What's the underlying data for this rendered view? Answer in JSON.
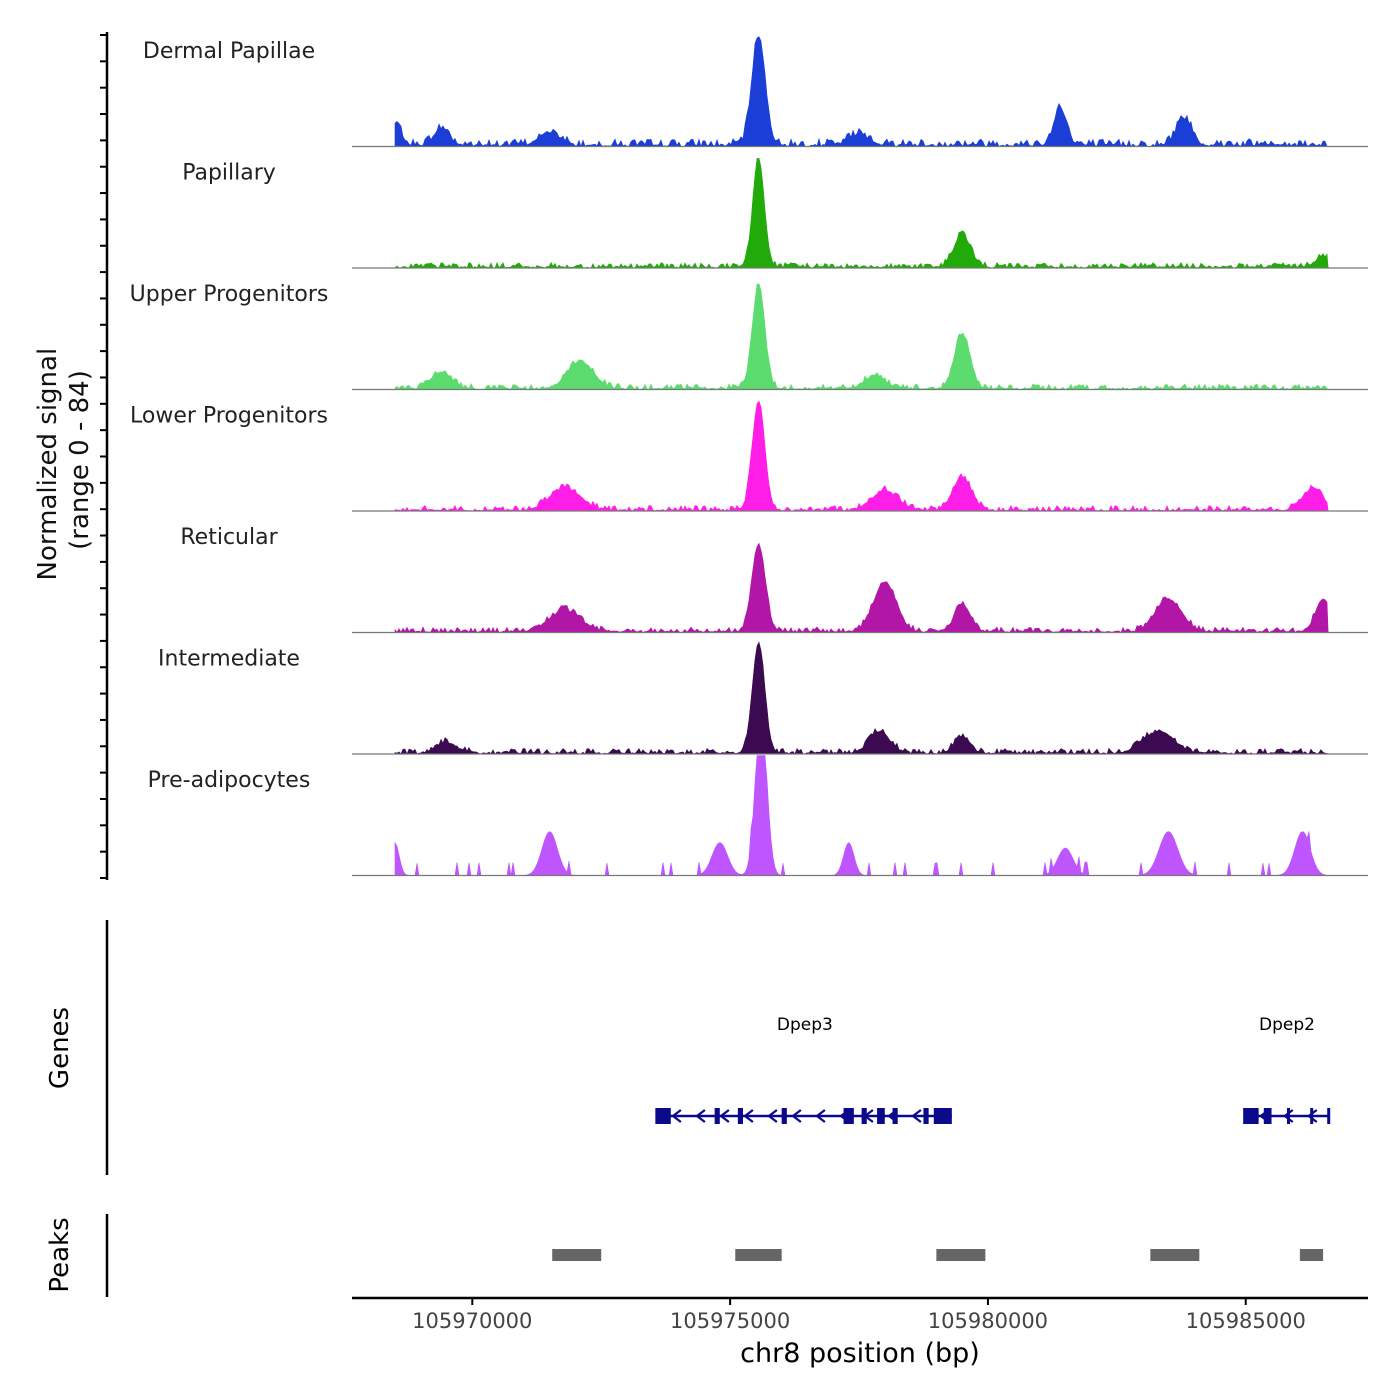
{
  "chart_data": {
    "type": "area",
    "title": "",
    "ylabel": "Normalized signal\n(range 0 - 84)",
    "ylim": [
      0,
      84
    ],
    "xlabel": "chr8 position (bp)",
    "xlim": [
      105967667,
      105987371
    ],
    "x_ticks": [
      105970000,
      105975000,
      105980000,
      105985000
    ],
    "x_tick_labels": [
      "105970000",
      "105975000",
      "105980000",
      "105985000"
    ],
    "tracks": [
      {
        "name": "Dermal Papillae",
        "color": "#1b3fd6",
        "peaks": [
          [
            105975550,
            1.0,
            130
          ],
          [
            105981400,
            0.35,
            120
          ],
          [
            105983800,
            0.25,
            150
          ],
          [
            105968500,
            0.2,
            120
          ],
          [
            105969400,
            0.15,
            150
          ],
          [
            105971500,
            0.12,
            200
          ],
          [
            105977500,
            0.1,
            200
          ]
        ]
      },
      {
        "name": "Papillary",
        "color": "#22aa0a",
        "peaks": [
          [
            105975550,
            1.0,
            110
          ],
          [
            105979500,
            0.3,
            160
          ],
          [
            105986500,
            0.1,
            150
          ]
        ]
      },
      {
        "name": "Upper Progenitors",
        "color": "#5cdb6e",
        "peaks": [
          [
            105975550,
            0.95,
            120
          ],
          [
            105979500,
            0.5,
            150
          ],
          [
            105972100,
            0.25,
            250
          ],
          [
            105969400,
            0.15,
            200
          ],
          [
            105977800,
            0.12,
            200
          ]
        ]
      },
      {
        "name": "Lower Progenitors",
        "color": "#ff1ee8",
        "peaks": [
          [
            105975550,
            1.0,
            120
          ],
          [
            105979500,
            0.3,
            180
          ],
          [
            105971800,
            0.2,
            300
          ],
          [
            105978000,
            0.18,
            250
          ],
          [
            105986300,
            0.2,
            200
          ]
        ]
      },
      {
        "name": "Reticular",
        "color": "#b216a6",
        "peaks": [
          [
            105975550,
            0.8,
            130
          ],
          [
            105978000,
            0.45,
            220
          ],
          [
            105979500,
            0.25,
            150
          ],
          [
            105983500,
            0.3,
            250
          ],
          [
            105986500,
            0.3,
            150
          ],
          [
            105971800,
            0.2,
            300
          ]
        ]
      },
      {
        "name": "Intermediate",
        "color": "#3c0a50",
        "peaks": [
          [
            105975550,
            1.0,
            120
          ],
          [
            105977900,
            0.2,
            200
          ],
          [
            105979500,
            0.15,
            150
          ],
          [
            105983300,
            0.2,
            300
          ],
          [
            105969500,
            0.1,
            200
          ]
        ]
      },
      {
        "name": "Pre-adipocytes",
        "color": "#bf55ff",
        "peaks": [
          [
            105975600,
            1.5,
            110
          ],
          [
            105971500,
            0.4,
            150
          ],
          [
            105983500,
            0.4,
            180
          ],
          [
            105986100,
            0.4,
            150
          ],
          [
            105974800,
            0.3,
            150
          ],
          [
            105981500,
            0.25,
            150
          ],
          [
            105977300,
            0.3,
            100
          ],
          [
            105968500,
            0.3,
            80
          ]
        ]
      }
    ],
    "genes": {
      "ylabel": "Genes",
      "items": [
        {
          "name": "Dpep3",
          "start": 105973600,
          "end": 105979300,
          "strand": "-",
          "exons": [
            [
              105973550,
              105973850
            ],
            [
              105974700,
              105974800
            ],
            [
              105975150,
              105975250
            ],
            [
              105976000,
              105976100
            ],
            [
              105977200,
              105977400
            ],
            [
              105977550,
              105977650
            ],
            [
              105977850,
              105978000
            ],
            [
              105978150,
              105978250
            ],
            [
              105978750,
              105978850
            ],
            [
              105978950,
              105979300
            ]
          ]
        },
        {
          "name": "Dpep2",
          "start": 105985000,
          "end": 105986600,
          "strand": "-",
          "exons": [
            [
              105984950,
              105985250
            ],
            [
              105985350,
              105985500
            ],
            [
              105985800,
              105985850
            ],
            [
              105986250,
              105986300
            ],
            [
              105986580,
              105986620
            ]
          ]
        }
      ]
    },
    "peaks_track": {
      "ylabel": "Peaks",
      "regions": [
        [
          105971550,
          105972500
        ],
        [
          105975100,
          105976000
        ],
        [
          105979000,
          105979950
        ],
        [
          105983150,
          105984100
        ],
        [
          105986050,
          105986500
        ]
      ]
    }
  }
}
